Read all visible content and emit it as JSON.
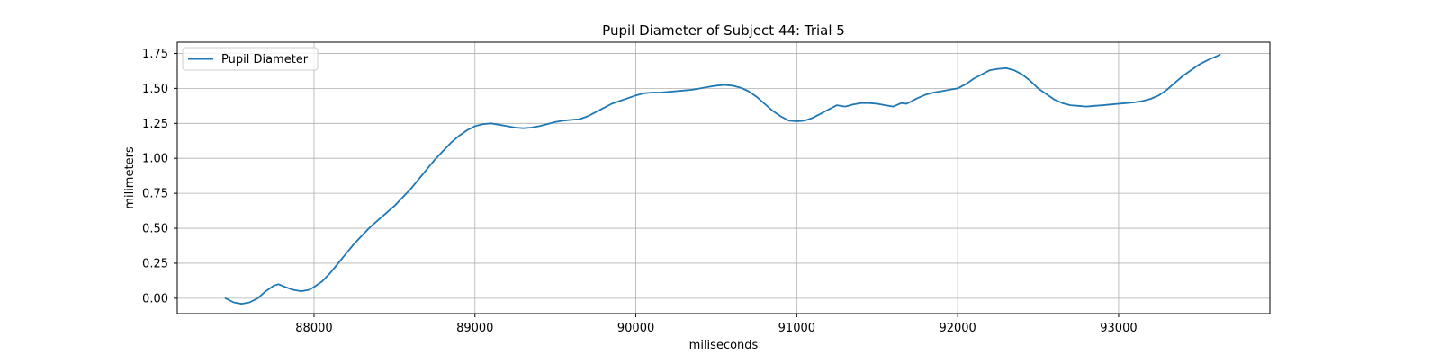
{
  "chart_data": {
    "type": "line",
    "title": "Pupil Diameter of Subject 44: Trial 5",
    "xlabel": "miliseconds",
    "ylabel": "milimeters",
    "xlim": [
      87150,
      93940
    ],
    "ylim": [
      -0.11,
      1.83
    ],
    "xticks": [
      88000,
      89000,
      90000,
      91000,
      92000,
      93000
    ],
    "yticks": [
      0.0,
      0.25,
      0.5,
      0.75,
      1.0,
      1.25,
      1.5,
      1.75
    ],
    "ytick_labels": [
      "0.00",
      "0.25",
      "0.50",
      "0.75",
      "1.00",
      "1.25",
      "1.50",
      "1.75"
    ],
    "grid": true,
    "legend_position": "top-left",
    "series": [
      {
        "name": "Pupil Diameter",
        "color": "#1f77b4",
        "x": [
          87450,
          87500,
          87550,
          87600,
          87650,
          87700,
          87750,
          87780,
          87820,
          87870,
          87920,
          87970,
          88000,
          88050,
          88100,
          88150,
          88200,
          88250,
          88300,
          88350,
          88400,
          88450,
          88500,
          88550,
          88600,
          88650,
          88700,
          88750,
          88800,
          88850,
          88900,
          88950,
          89000,
          89050,
          89100,
          89150,
          89200,
          89250,
          89300,
          89350,
          89400,
          89450,
          89500,
          89550,
          89600,
          89650,
          89700,
          89750,
          89800,
          89850,
          89900,
          89950,
          90000,
          90050,
          90100,
          90150,
          90200,
          90250,
          90300,
          90350,
          90400,
          90450,
          90500,
          90550,
          90600,
          90650,
          90700,
          90750,
          90800,
          90850,
          90900,
          90950,
          91000,
          91050,
          91100,
          91150,
          91200,
          91250,
          91300,
          91320,
          91350,
          91400,
          91450,
          91500,
          91550,
          91600,
          91650,
          91680,
          91700,
          91750,
          91800,
          91850,
          91900,
          91950,
          92000,
          92050,
          92100,
          92150,
          92200,
          92250,
          92300,
          92350,
          92400,
          92450,
          92500,
          92550,
          92600,
          92650,
          92700,
          92750,
          92800,
          92850,
          92900,
          92950,
          93000,
          93050,
          93100,
          93150,
          93200,
          93250,
          93300,
          93350,
          93400,
          93450,
          93500,
          93550,
          93600,
          93630
        ],
        "y": [
          0.0,
          -0.03,
          -0.04,
          -0.03,
          0.0,
          0.05,
          0.09,
          0.1,
          0.08,
          0.06,
          0.05,
          0.06,
          0.08,
          0.12,
          0.18,
          0.25,
          0.32,
          0.39,
          0.45,
          0.51,
          0.56,
          0.61,
          0.66,
          0.72,
          0.78,
          0.85,
          0.92,
          0.99,
          1.05,
          1.11,
          1.16,
          1.2,
          1.23,
          1.245,
          1.25,
          1.24,
          1.23,
          1.22,
          1.215,
          1.22,
          1.23,
          1.245,
          1.26,
          1.27,
          1.275,
          1.28,
          1.3,
          1.33,
          1.36,
          1.39,
          1.41,
          1.43,
          1.45,
          1.465,
          1.47,
          1.47,
          1.475,
          1.48,
          1.485,
          1.49,
          1.5,
          1.51,
          1.52,
          1.525,
          1.52,
          1.505,
          1.48,
          1.44,
          1.39,
          1.34,
          1.3,
          1.27,
          1.265,
          1.27,
          1.29,
          1.32,
          1.35,
          1.38,
          1.37,
          1.375,
          1.385,
          1.395,
          1.395,
          1.39,
          1.38,
          1.37,
          1.395,
          1.39,
          1.4,
          1.43,
          1.455,
          1.47,
          1.48,
          1.49,
          1.5,
          1.53,
          1.57,
          1.6,
          1.63,
          1.64,
          1.645,
          1.63,
          1.6,
          1.555,
          1.5,
          1.46,
          1.42,
          1.395,
          1.38,
          1.375,
          1.37,
          1.375,
          1.38,
          1.385,
          1.39,
          1.395,
          1.4,
          1.41,
          1.425,
          1.45,
          1.49,
          1.54,
          1.59,
          1.63,
          1.67,
          1.7,
          1.725,
          1.74
        ]
      }
    ]
  }
}
